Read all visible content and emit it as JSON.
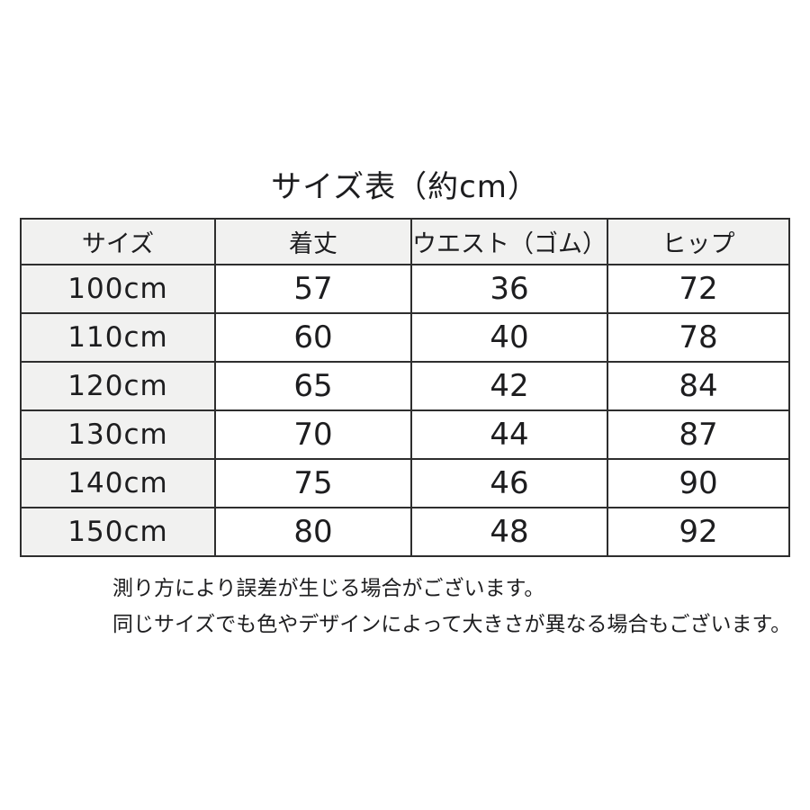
{
  "title": "サイズ表（約cm）",
  "table": {
    "headers": [
      "サイズ",
      "着丈",
      "ウエスト（ゴム）",
      "ヒップ"
    ],
    "rows": [
      [
        "100cm",
        "57",
        "36",
        "72"
      ],
      [
        "110cm",
        "60",
        "40",
        "78"
      ],
      [
        "120cm",
        "65",
        "42",
        "84"
      ],
      [
        "130cm",
        "70",
        "44",
        "87"
      ],
      [
        "140cm",
        "75",
        "46",
        "90"
      ],
      [
        "150cm",
        "80",
        "48",
        "92"
      ]
    ]
  },
  "notes": [
    "測り方により誤差が生じる場合がございます。",
    "同じサイズでも色やデザインによって大きさが異なる場合もございます。"
  ],
  "colors": {
    "background": "#ffffff",
    "cell_shaded_bg": "#f1f1f0",
    "border": "#2e2e2e",
    "text": "#1d1d1f"
  },
  "chart_data": {
    "type": "table",
    "title": "サイズ表（約cm）",
    "unit": "cm",
    "columns": [
      "サイズ",
      "着丈",
      "ウエスト（ゴム）",
      "ヒップ"
    ],
    "rows": [
      [
        "100cm",
        57,
        36,
        72
      ],
      [
        "110cm",
        60,
        40,
        78
      ],
      [
        "120cm",
        65,
        42,
        84
      ],
      [
        "130cm",
        70,
        44,
        87
      ],
      [
        "140cm",
        75,
        46,
        90
      ],
      [
        "150cm",
        80,
        48,
        92
      ]
    ],
    "annotations": [
      "測り方により誤差が生じる場合がございます。",
      "同じサイズでも色やデザインによって大きさが異なる場合もございます。"
    ]
  }
}
